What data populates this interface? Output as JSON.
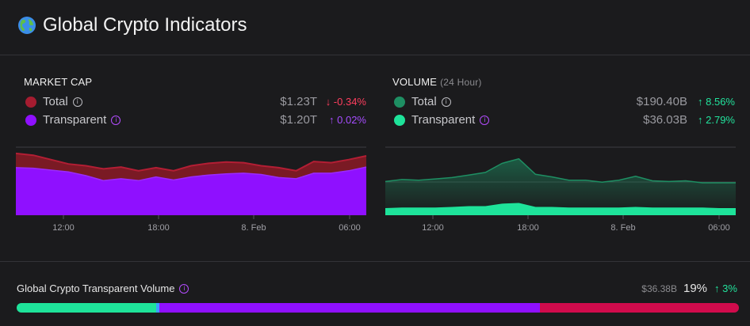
{
  "header": {
    "title": "Global Crypto Indicators",
    "icon": "globe-icon"
  },
  "market_cap": {
    "title": "MARKET CAP",
    "rows": [
      {
        "label": "Total",
        "value": "$1.23T",
        "change": "↓ -0.34%",
        "color": "#a51c30",
        "change_color": "#ff3e5e"
      },
      {
        "label": "Transparent",
        "value": "$1.20T",
        "change": "↑ 0.02%",
        "color": "#8f10ff",
        "change_color": "#a64dff"
      }
    ],
    "x_ticks": [
      "12:00",
      "18:00",
      "8. Feb",
      "06:00"
    ]
  },
  "volume": {
    "title": "VOLUME",
    "subtitle": "(24 Hour)",
    "rows": [
      {
        "label": "Total",
        "value": "$190.40B",
        "change": "↑ 8.56%",
        "color": "#1e8f63",
        "change_color": "#22e29c"
      },
      {
        "label": "Transparent",
        "value": "$36.03B",
        "change": "↑ 2.79%",
        "color": "#1ee39a",
        "change_color": "#22e29c"
      }
    ],
    "x_ticks": [
      "12:00",
      "18:00",
      "8. Feb",
      "06:00"
    ]
  },
  "chart_data": [
    {
      "type": "area",
      "series": [
        {
          "name": "Total",
          "values": [
            100,
            97,
            90,
            83,
            80,
            75,
            78,
            72,
            77,
            72,
            80,
            84,
            86,
            85,
            80,
            77,
            72,
            87,
            85,
            90,
            96
          ]
        },
        {
          "name": "Transparent",
          "values": [
            77,
            76,
            73,
            70,
            64,
            56,
            59,
            56,
            62,
            57,
            62,
            65,
            67,
            68,
            66,
            61,
            59,
            68,
            68,
            72,
            78
          ]
        }
      ],
      "x_ticks": [
        "12:00",
        "18:00",
        "8. Feb",
        "06:00"
      ],
      "ylim": [
        0,
        105
      ]
    },
    {
      "type": "area",
      "series": [
        {
          "name": "Total",
          "values": [
            52,
            55,
            54,
            56,
            58,
            62,
            66,
            80,
            87,
            63,
            59,
            54,
            54,
            51,
            54,
            60,
            53,
            52,
            53,
            50,
            50,
            50
          ]
        },
        {
          "name": "Transparent",
          "values": [
            10,
            11,
            11,
            11,
            12,
            13,
            13,
            17,
            18,
            12,
            12,
            11,
            11,
            11,
            11,
            12,
            11,
            11,
            11,
            11,
            10,
            10
          ]
        }
      ],
      "x_ticks": [
        "12:00",
        "18:00",
        "8. Feb",
        "06:00"
      ],
      "ylim": [
        0,
        100
      ]
    }
  ],
  "bottom": {
    "label": "Global Crypto Transparent Volume",
    "amount": "$36.38B",
    "percent": "19%",
    "change": "↑ 3%",
    "segments": [
      {
        "fraction": 0.193,
        "color": "#1ee39a"
      },
      {
        "fraction": 0.005,
        "color": "#3aa0ff"
      },
      {
        "fraction": 0.526,
        "color": "#8f10ff"
      },
      {
        "fraction": 0.276,
        "color": "#d00b4c"
      }
    ]
  }
}
